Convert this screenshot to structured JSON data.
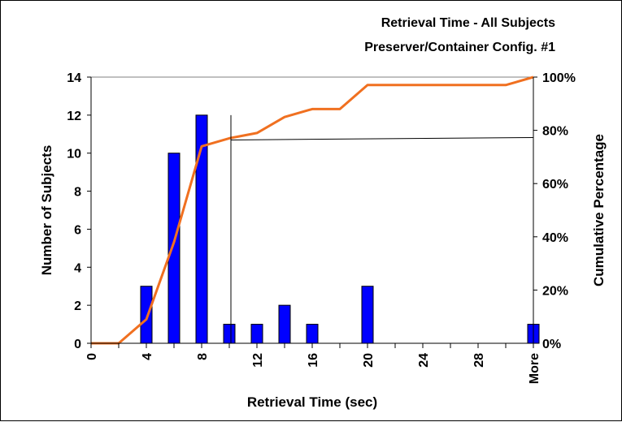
{
  "chart_data": {
    "type": "bar",
    "title_lines": [
      "Retrieval Time -  All Subjects",
      "Preserver/Container Config. #1"
    ],
    "xlabel": "Retrieval Time (sec)",
    "ylabel": "Number of Subjects",
    "y2label": "Cumulative Percentage",
    "categories": [
      "0",
      "2",
      "4",
      "6",
      "8",
      "10",
      "12",
      "14",
      "16",
      "18",
      "20",
      "22",
      "24",
      "26",
      "28",
      "30",
      "More"
    ],
    "x_tick_labels": [
      "0",
      "4",
      "8",
      "12",
      "16",
      "20",
      "24",
      "28",
      "More"
    ],
    "series": [
      {
        "name": "",
        "type": "bar",
        "axis": "left",
        "color": "#0000ff",
        "values": [
          0,
          0,
          3,
          10,
          12,
          1,
          1,
          2,
          1,
          0,
          3,
          0,
          0,
          0,
          0,
          0,
          1
        ]
      },
      {
        "name": "",
        "type": "line",
        "axis": "right",
        "color": "#f07020",
        "values": [
          0,
          0,
          9,
          38,
          74,
          77,
          79,
          85,
          88,
          88,
          97,
          97,
          97,
          97,
          97,
          97,
          100
        ]
      }
    ],
    "ylim": [
      0,
      14
    ],
    "yticks": [
      "0",
      "2",
      "4",
      "6",
      "8",
      "10",
      "12",
      "14"
    ],
    "y2lim": [
      0,
      100
    ],
    "y2ticks": [
      "0%",
      "20%",
      "40%",
      "60%",
      "80%",
      "100%"
    ],
    "annotation": {
      "vertical_line_x_category": "10",
      "vertical_line_top_y": 12,
      "horizontal_line_y2": 77
    },
    "grid": false,
    "legend": "none"
  }
}
